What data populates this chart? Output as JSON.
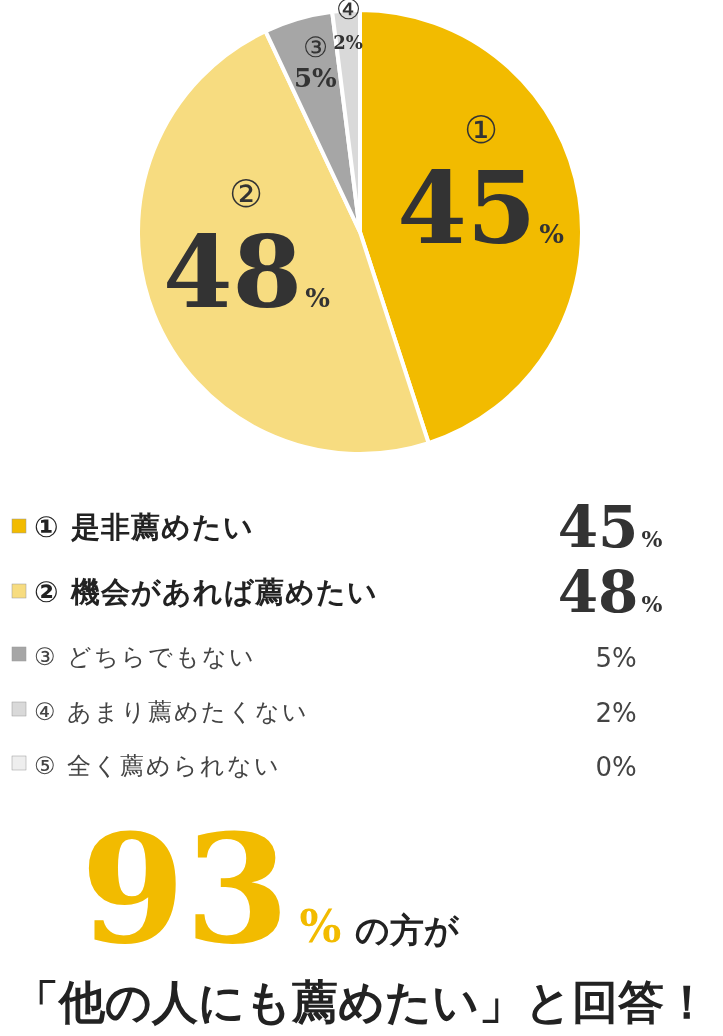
{
  "chart_data": {
    "type": "pie",
    "categories": [
      "① 是非薦めたい",
      "② 機会があれば薦めたい",
      "③ どちらでもない",
      "④ あまり薦めたくない",
      "⑤ 全く薦められない"
    ],
    "values": [
      45,
      48,
      5,
      2,
      0
    ],
    "value_labels": [
      "45%",
      "48%",
      "5%",
      "2%",
      "0%"
    ],
    "colors": [
      "#f2bb00",
      "#f7dc80",
      "#a6a6a6",
      "#d9d9d9",
      "#eeeeee"
    ],
    "legend": "bottom",
    "annotations": [
      {
        "text": "①",
        "x": "① 是非薦めたい"
      },
      {
        "text": "②",
        "x": "② 機会があれば薦めたい"
      },
      {
        "text": "③",
        "x": "③ どちらでもない"
      },
      {
        "text": "④",
        "x": "④ あまり薦めたくない"
      },
      "93% の方が",
      "「他の人にも薦めたい」と回答！"
    ]
  }
}
